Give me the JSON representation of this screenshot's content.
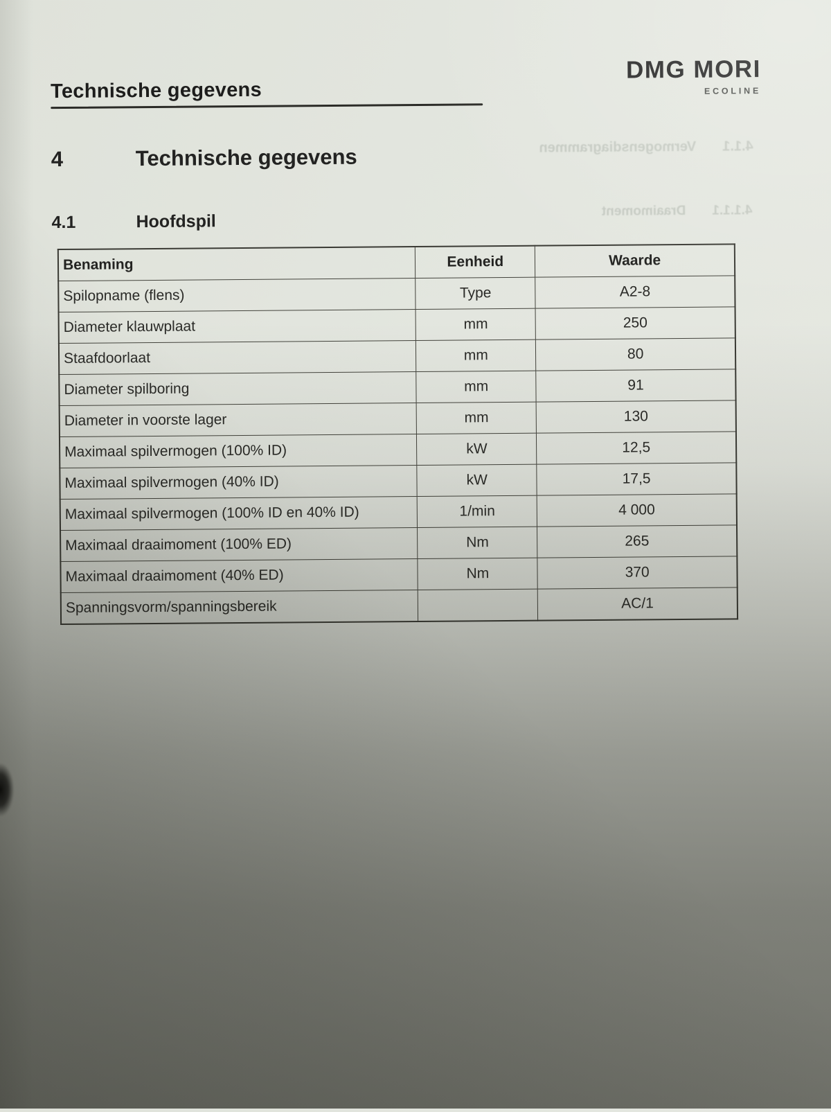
{
  "page": {
    "running_header": "Technische gegevens",
    "brand": {
      "logo_text": "DMG MORI",
      "subbrand_text": "ECOLINE"
    },
    "section_number": "4",
    "section_title": "Technische gegevens",
    "subsection_number": "4.1",
    "subsection_title": "Hoofdspil"
  },
  "table": {
    "headers": [
      "Benaming",
      "Eenheid",
      "Waarde"
    ],
    "rows": [
      {
        "benaming": "Spilopname (flens)",
        "eenheid": "Type",
        "waarde": "A2-8"
      },
      {
        "benaming": "Diameter klauwplaat",
        "eenheid": "mm",
        "waarde": "250"
      },
      {
        "benaming": "Staafdoorlaat",
        "eenheid": "mm",
        "waarde": "80"
      },
      {
        "benaming": "Diameter spilboring",
        "eenheid": "mm",
        "waarde": "91"
      },
      {
        "benaming": "Diameter in voorste lager",
        "eenheid": "mm",
        "waarde": "130"
      },
      {
        "benaming": "Maximaal spilvermogen (100% ID)",
        "eenheid": "kW",
        "waarde": "12,5"
      },
      {
        "benaming": "Maximaal spilvermogen (40% ID)",
        "eenheid": "kW",
        "waarde": "17,5"
      },
      {
        "benaming": "Maximaal spilvermogen (100% ID en 40% ID)",
        "eenheid": "1/min",
        "waarde": "4 000"
      },
      {
        "benaming": "Maximaal draaimoment (100% ED)",
        "eenheid": "Nm",
        "waarde": "265"
      },
      {
        "benaming": "Maximaal draaimoment (40% ED)",
        "eenheid": "Nm",
        "waarde": "370"
      },
      {
        "benaming": "Spanningsvorm/spanningsbereik",
        "eenheid": "",
        "waarde": "AC/1"
      }
    ]
  },
  "bleedthrough": {
    "line1_number": "4.1.1",
    "line1_title": "Vermogensdiagrammen",
    "line2_number": "4.1.1.1",
    "line2_title": "Draaimoment"
  },
  "colors": {
    "paper": "#e4e6e0",
    "ink": "#232322",
    "logo_gray": "#454745",
    "shadow": "#20211a"
  }
}
